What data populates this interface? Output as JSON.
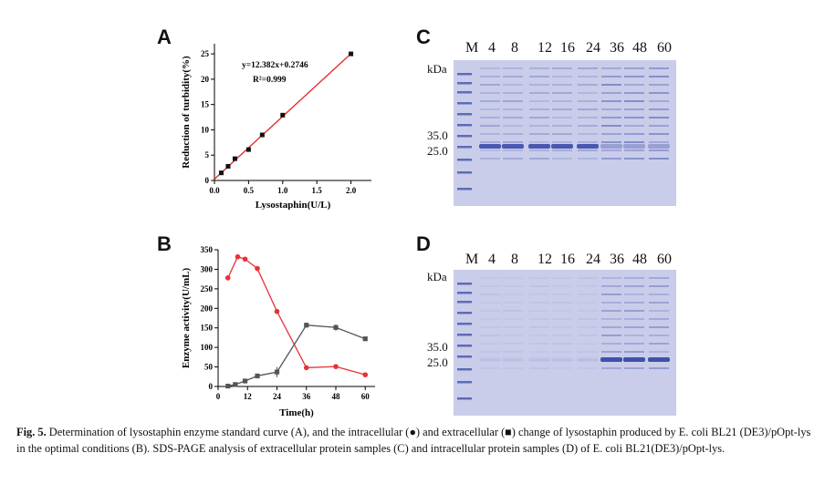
{
  "header_fragment": "",
  "panels": {
    "A": {
      "letter": "A",
      "chart_data": {
        "type": "line",
        "xlabel": "Lysostaphin(U/L)",
        "ylabel": "Reduction of turbidity(%)",
        "xlim": [
          0,
          2.3
        ],
        "ylim": [
          0,
          27
        ],
        "xticks": [
          "0.0",
          "0.5",
          "1.0",
          "1.5",
          "2.0"
        ],
        "yticks": [
          "0",
          "5",
          "10",
          "15",
          "20",
          "25"
        ],
        "x": [
          0.1,
          0.2,
          0.3,
          0.5,
          0.7,
          1.0,
          2.0
        ],
        "y": [
          1.5,
          2.8,
          4.3,
          6.1,
          9.0,
          12.9,
          25.0
        ],
        "fit": {
          "slope": 12.382,
          "intercept": 0.2746,
          "x_range": [
            0,
            2.0
          ],
          "color": "#e32222"
        },
        "equation": "y=12.382x+0.2746",
        "r2": "R²=0.999"
      }
    },
    "B": {
      "letter": "B",
      "chart_data": {
        "type": "line",
        "xlabel": "Time(h)",
        "ylabel": "Enzyme activity(U/mL)",
        "xlim": [
          0,
          64
        ],
        "ylim": [
          0,
          350
        ],
        "xticks": [
          "0",
          "12",
          "24",
          "36",
          "48",
          "60"
        ],
        "yticks": [
          "0",
          "50",
          "100",
          "150",
          "200",
          "250",
          "300",
          "350"
        ],
        "series": [
          {
            "name": "intracellular",
            "color": "#e8313a",
            "marker": "circle",
            "x": [
              4,
              8,
              11,
              16,
              24,
              36,
              48,
              60
            ],
            "y": [
              278,
              332,
              326,
              302,
              192,
              48,
              51,
              30
            ],
            "err": [
              0,
              0,
              0,
              6,
              5,
              0,
              4,
              6
            ]
          },
          {
            "name": "extracellular",
            "color": "#555555",
            "marker": "square",
            "x": [
              4,
              7,
              11,
              16,
              24,
              36,
              48,
              60
            ],
            "y": [
              1,
              5,
              14,
              27,
              37,
              157,
              151,
              122
            ],
            "err": [
              0,
              0,
              2,
              4,
              13,
              6,
              8,
              3
            ]
          }
        ]
      }
    },
    "C": {
      "letter": "C",
      "lanes": [
        "M",
        "4",
        "8",
        "12",
        "16",
        "24",
        "36",
        "48",
        "60"
      ],
      "kda": "kDa",
      "mw_markers": [
        "35.0",
        "25.0"
      ]
    },
    "D": {
      "letter": "D",
      "lanes": [
        "M",
        "4",
        "8",
        "12",
        "16",
        "24",
        "36",
        "48",
        "60"
      ],
      "kda": "kDa",
      "mw_markers": [
        "35.0",
        "25.0"
      ]
    }
  },
  "caption": {
    "label": "Fig. 5.",
    "text": " Determination of lysostaphin enzyme standard curve (A), and the intracellular (●) and extracellular (■) change of lysostaphin produced by E. coli BL21 (DE3)/pOpt-lys in the optimal conditions (B). SDS-PAGE analysis of extracellular protein samples (C) and intracellular protein samples (D) of E. coli BL21(DE3)/pOpt-lys."
  },
  "colors": {
    "gel_bg": "#c9cdea",
    "band": "#3a4aa8",
    "fit_line": "#e32222"
  }
}
